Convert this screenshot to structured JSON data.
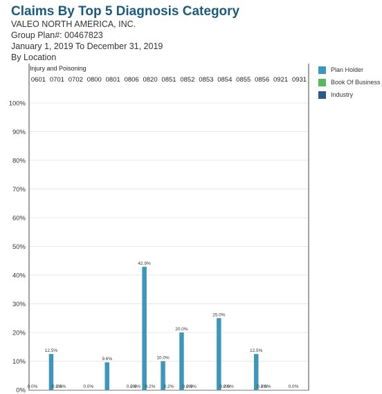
{
  "header": {
    "title": "Claims By Top 5 Diagnosis Category",
    "company": "VALEO NORTH AMERICA, INC.",
    "group_plan": "Group Plan#: 00467823",
    "date_range": "January 1, 2019 To  December 31, 2019",
    "grouping": "By Location"
  },
  "legend": [
    {
      "label": "Plan Holder",
      "color": "#3c97ba"
    },
    {
      "label": "Book Of Business",
      "color": "#5cb85c"
    },
    {
      "label": "Industry",
      "color": "#2b5a8a"
    }
  ],
  "chart_data": {
    "type": "bar",
    "group_label": "Injury and Poisoning",
    "categories": [
      "0601",
      "0701",
      "0702",
      "0800",
      "0801",
      "0806",
      "0820",
      "0851",
      "0852",
      "0853",
      "0854",
      "0855",
      "0856",
      "0921",
      "0931"
    ],
    "series": [
      {
        "name": "Plan Holder",
        "color": "#3c97ba",
        "values": [
          0.0,
          12.5,
          0.0,
          0.0,
          9.6,
          0.0,
          42.9,
          10.0,
          20.0,
          0.0,
          25.0,
          0.0,
          12.5,
          0.0,
          0.0
        ],
        "labels": [
          "0.0%",
          "12.5%",
          "",
          "0.0%",
          "9.6%",
          "",
          "42.9%",
          "10.0%",
          "20.0%",
          "",
          "25.0%",
          "",
          "12.5%",
          "",
          "0.0%"
        ]
      },
      {
        "name": "Book Of Business",
        "color": "#5cb85c",
        "values": [
          0,
          0,
          0,
          0,
          0,
          0,
          0,
          0,
          0,
          0,
          0,
          0,
          0,
          0,
          0
        ],
        "labels": [
          "",
          "0.2%",
          "",
          "",
          "",
          "0.2%",
          "0.2%",
          "0.2%",
          "0.2%",
          "",
          "0.2%",
          "",
          "0.2%",
          "",
          ""
        ]
      },
      {
        "name": "Industry",
        "color": "#2b5a8a",
        "values": [
          0,
          0,
          0,
          0,
          0,
          0,
          0,
          0,
          0,
          0,
          0,
          0,
          0,
          0,
          0
        ],
        "labels": [
          "",
          "0.0%",
          "",
          "",
          "",
          "0.0%",
          "",
          "",
          "0.0%",
          "",
          "0.0%",
          "",
          "0.0%",
          "",
          ""
        ]
      }
    ],
    "y_ticks": [
      "0%",
      "10%",
      "20%",
      "30%",
      "40%",
      "50%",
      "60%",
      "70%",
      "80%",
      "90%",
      "100%"
    ],
    "ylim": [
      0,
      100
    ],
    "grid": true,
    "legend_position": "right"
  }
}
